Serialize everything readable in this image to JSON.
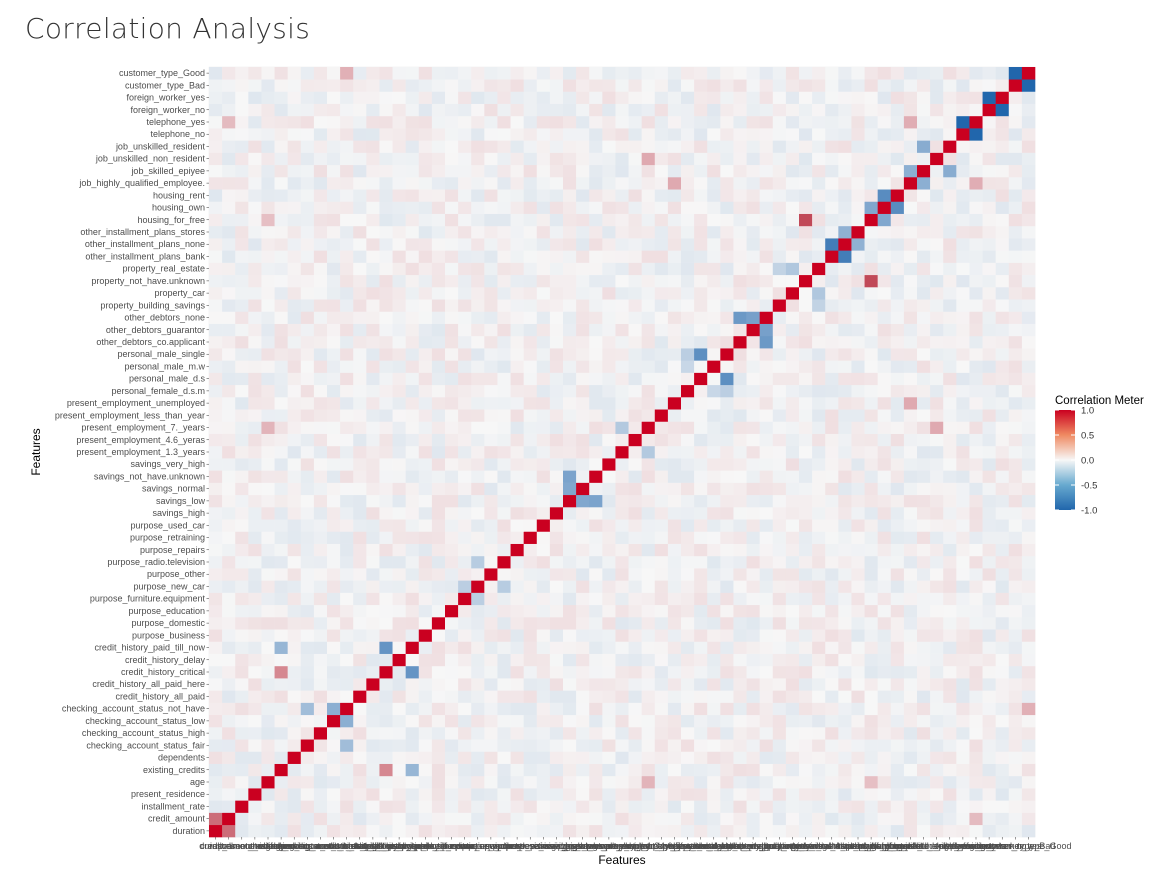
{
  "page": {
    "title": "Correlation Analysis"
  },
  "chart_data": {
    "type": "heatmap",
    "title": "",
    "xlabel": "Features",
    "ylabel": "Features",
    "legend": {
      "title": "Correlation Meter",
      "ticks": [
        "1.0",
        "0.5",
        "0.0",
        "-0.5",
        "-1.0"
      ],
      "range": [
        -1,
        1
      ],
      "placement": "right"
    },
    "colors": {
      "low": "#2166ac",
      "mid": "#f7f7f7",
      "high": "#b2182b",
      "diagonal": "#ca0020",
      "grid": "#ebebeb"
    },
    "features": [
      "duration",
      "credit_amount",
      "installment_rate",
      "present_residence",
      "age",
      "existing_credits",
      "dependents",
      "checking_account_status_fair",
      "checking_account_status_high",
      "checking_account_status_low",
      "checking_account_status_not_have",
      "credit_history_all_paid",
      "credit_history_all_paid_here",
      "credit_history_critical",
      "credit_history_delay",
      "credit_history_paid_till_now",
      "purpose_business",
      "purpose_domestic",
      "purpose_education",
      "purpose_furniture.equipment",
      "purpose_new_car",
      "purpose_other",
      "purpose_radio.television",
      "purpose_repairs",
      "purpose_retraining",
      "purpose_used_car",
      "savings_high",
      "savings_low",
      "savings_normal",
      "savings_not_have.unknown",
      "savings_very_high",
      "present_employment_1.3_years",
      "present_employment_4.6_yeras",
      "present_employment_7._years",
      "present_employment_less_than_year",
      "present_employment_unemployed",
      "personal_female_d.s.m",
      "personal_male_d.s",
      "personal_male_m.w",
      "personal_male_single",
      "other_debtors_co.applicant",
      "other_debtors_guarantor",
      "other_debtors_none",
      "property_building_savings",
      "property_car",
      "property_not_have.unknown",
      "property_real_estate",
      "other_installment_plans_bank",
      "other_installment_plans_none",
      "other_installment_plans_stores",
      "housing_for_free",
      "housing_own",
      "housing_rent",
      "job_highly_qualified_employee.",
      "job_skilled_epiyee",
      "job_unskilled_non_resident",
      "job_unskilled_resident",
      "telephone_no",
      "telephone_yes",
      "foreign_worker_no",
      "foreign_worker_yes",
      "customer_type_Bad",
      "customer_type_Good"
    ],
    "notable_values": [
      {
        "a": "duration",
        "b": "credit_amount",
        "value": 0.62
      },
      {
        "a": "customer_type_Bad",
        "b": "customer_type_Good",
        "value": -1.0
      },
      {
        "a": "foreign_worker_no",
        "b": "foreign_worker_yes",
        "value": -1.0
      },
      {
        "a": "telephone_no",
        "b": "telephone_yes",
        "value": -1.0
      },
      {
        "a": "housing_own",
        "b": "housing_rent",
        "value": -0.74
      },
      {
        "a": "housing_own",
        "b": "housing_for_free",
        "value": -0.55
      },
      {
        "a": "housing_for_free",
        "b": "property_not_have.unknown",
        "value": 0.78
      },
      {
        "a": "other_installment_plans_bank",
        "b": "other_installment_plans_none",
        "value": -0.84
      },
      {
        "a": "other_installment_plans_none",
        "b": "other_installment_plans_stores",
        "value": -0.48
      },
      {
        "a": "other_debtors_guarantor",
        "b": "other_debtors_none",
        "value": -0.6
      },
      {
        "a": "other_debtors_co.applicant",
        "b": "other_debtors_none",
        "value": -0.65
      },
      {
        "a": "personal_male_single",
        "b": "personal_male_d.s",
        "value": -0.72
      },
      {
        "a": "personal_male_single",
        "b": "personal_female_d.s.m",
        "value": -0.28
      },
      {
        "a": "personal_female_d.s.m",
        "b": "personal_male_m.w",
        "value": -0.22
      },
      {
        "a": "savings_low",
        "b": "savings_not_have.unknown",
        "value": -0.58
      },
      {
        "a": "savings_low",
        "b": "savings_normal",
        "value": -0.55
      },
      {
        "a": "credit_history_critical",
        "b": "credit_history_paid_till_now",
        "value": -0.68
      },
      {
        "a": "credit_history_critical",
        "b": "existing_credits",
        "value": 0.5
      },
      {
        "a": "credit_history_paid_till_now",
        "b": "existing_credits",
        "value": -0.45
      },
      {
        "a": "checking_account_status_low",
        "b": "checking_account_status_not_have",
        "value": -0.5
      },
      {
        "a": "checking_account_status_fair",
        "b": "checking_account_status_not_have",
        "value": -0.4
      },
      {
        "a": "job_highly_qualified_employee.",
        "b": "job_skilled_epiyee",
        "value": -0.5
      },
      {
        "a": "job_skilled_epiyee",
        "b": "job_unskilled_resident",
        "value": -0.52
      },
      {
        "a": "job_unskilled_non_resident",
        "b": "present_employment_7._years",
        "value": 0.35
      },
      {
        "a": "job_highly_qualified_employee.",
        "b": "present_employment_unemployed",
        "value": 0.35
      },
      {
        "a": "job_highly_qualified_employee.",
        "b": "telephone_yes",
        "value": 0.33
      },
      {
        "a": "property_real_estate",
        "b": "property_car",
        "value": -0.33
      },
      {
        "a": "property_real_estate",
        "b": "property_building_savings",
        "value": -0.25
      },
      {
        "a": "present_employment_1.3_years",
        "b": "present_employment_7._years",
        "value": -0.32
      },
      {
        "a": "age",
        "b": "present_employment_7._years",
        "value": 0.3
      },
      {
        "a": "age",
        "b": "housing_for_free",
        "value": 0.25
      },
      {
        "a": "credit_amount",
        "b": "telephone_yes",
        "value": 0.27
      },
      {
        "a": "checking_account_status_not_have",
        "b": "customer_type_Good",
        "value": 0.32
      },
      {
        "a": "purpose_new_car",
        "b": "purpose_radio.television",
        "value": -0.3
      },
      {
        "a": "purpose_new_car",
        "b": "purpose_furniture.equipment",
        "value": -0.28
      }
    ]
  }
}
